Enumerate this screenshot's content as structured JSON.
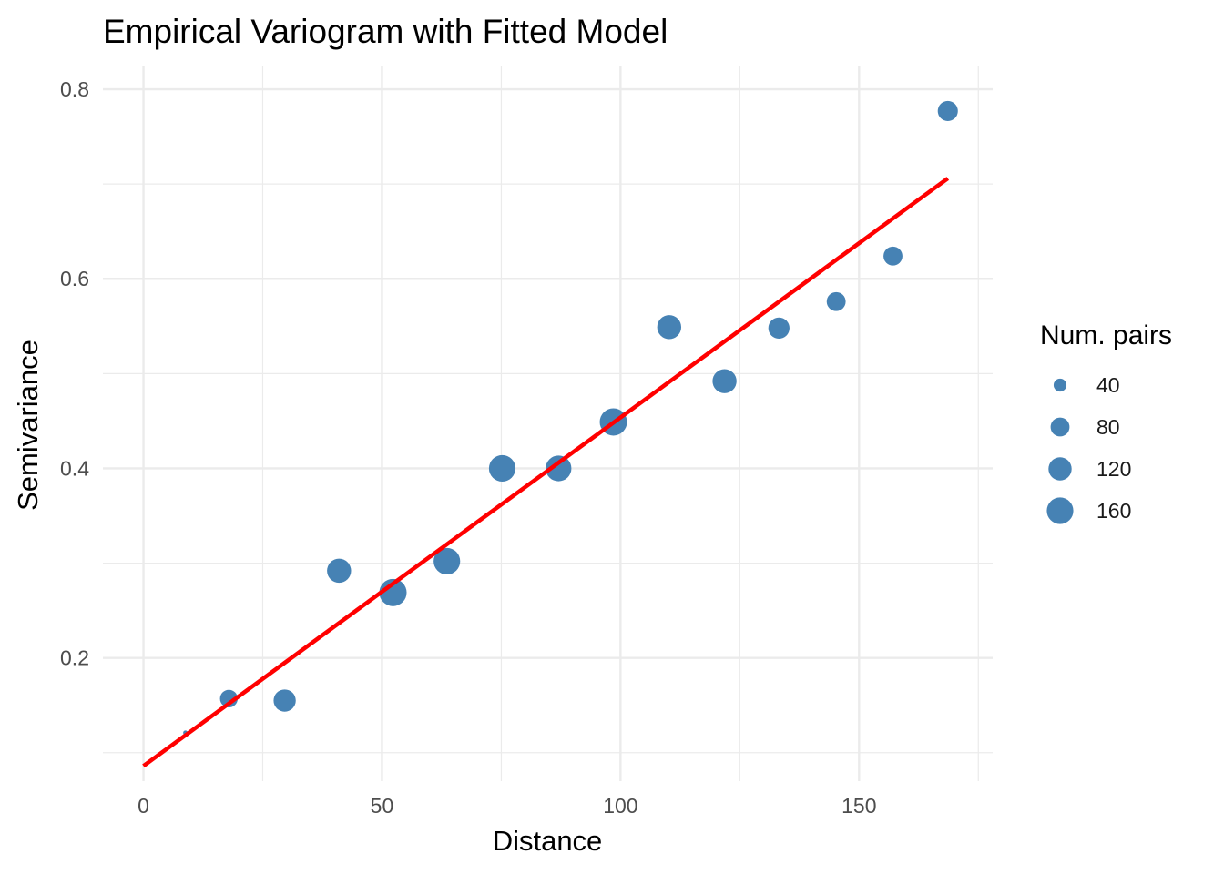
{
  "chart_data": {
    "type": "scatter",
    "title": "Empirical Variogram with Fitted Model",
    "xlabel": "Distance",
    "ylabel": "Semivariance",
    "xlim": [
      -8.5,
      178
    ],
    "ylim": [
      0.07,
      0.825
    ],
    "x_ticks": [
      0,
      50,
      100,
      150
    ],
    "x_tick_labels": [
      "0",
      "50",
      "100",
      "150"
    ],
    "y_ticks": [
      0.2,
      0.4,
      0.6,
      0.8
    ],
    "y_tick_labels": [
      "0.2",
      "0.4",
      "0.6",
      "0.8"
    ],
    "x_minor_ticks": [
      25,
      75,
      125,
      175
    ],
    "y_minor_ticks": [
      0.1,
      0.3,
      0.5,
      0.7
    ],
    "grid": true,
    "series": [
      {
        "type": "scatter",
        "color": "#4682b4",
        "points": [
          {
            "x": 8.8,
            "y": 0.121,
            "npairs": 20
          },
          {
            "x": 17.9,
            "y": 0.157,
            "npairs": 70
          },
          {
            "x": 29.6,
            "y": 0.155,
            "npairs": 110
          },
          {
            "x": 41.0,
            "y": 0.292,
            "npairs": 130
          },
          {
            "x": 52.3,
            "y": 0.269,
            "npairs": 170
          },
          {
            "x": 63.6,
            "y": 0.302,
            "npairs": 160
          },
          {
            "x": 75.2,
            "y": 0.4,
            "npairs": 160
          },
          {
            "x": 87.0,
            "y": 0.4,
            "npairs": 150
          },
          {
            "x": 98.5,
            "y": 0.449,
            "npairs": 170
          },
          {
            "x": 110.2,
            "y": 0.549,
            "npairs": 130
          },
          {
            "x": 121.8,
            "y": 0.492,
            "npairs": 130
          },
          {
            "x": 133.2,
            "y": 0.548,
            "npairs": 100
          },
          {
            "x": 145.2,
            "y": 0.576,
            "npairs": 80
          },
          {
            "x": 157.1,
            "y": 0.624,
            "npairs": 80
          },
          {
            "x": 168.6,
            "y": 0.777,
            "npairs": 90
          }
        ]
      },
      {
        "type": "line",
        "color": "#ff0000",
        "x": [
          0,
          168.6
        ],
        "y": [
          0.086,
          0.706
        ]
      }
    ],
    "legend": {
      "title": "Num. pairs",
      "position": "right",
      "entries": [
        {
          "label": "40",
          "value": 40
        },
        {
          "label": "80",
          "value": 80
        },
        {
          "label": "120",
          "value": 120
        },
        {
          "label": "160",
          "value": 160
        }
      ]
    }
  }
}
